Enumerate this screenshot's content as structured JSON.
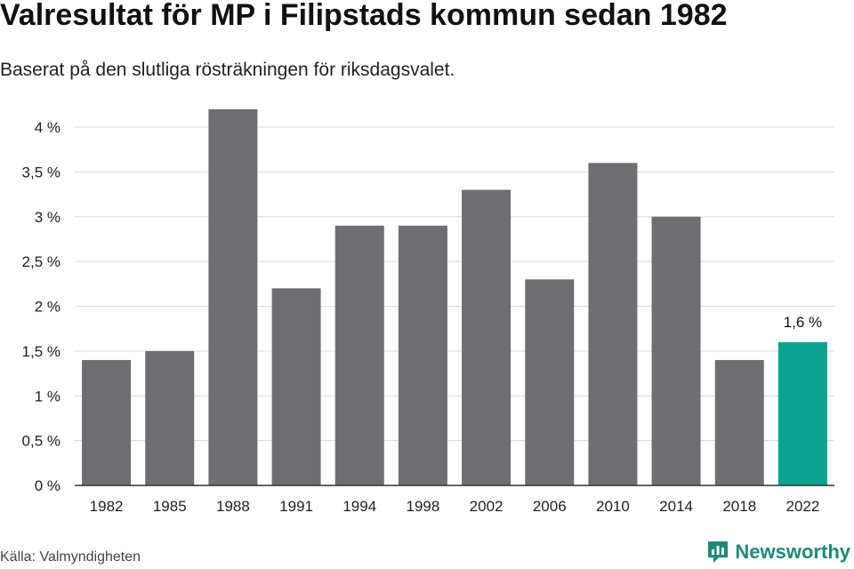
{
  "header": {
    "title": "Valresultat för MP i Filipstads kommun sedan 1982",
    "subtitle": "Baserat på den slutliga rösträkningen för riksdagsvalet."
  },
  "footer": {
    "source": "Källa: Valmyndigheten",
    "brand": "Newsworthy",
    "brand_icon": "newsworthy-logo-icon"
  },
  "colors": {
    "bar": "#6e6d72",
    "highlight": "#0aa38f",
    "grid": "#d9d9d9",
    "axis": "#333333",
    "brand": "#1f8a7a"
  },
  "chart_data": {
    "type": "bar",
    "title": "Valresultat för MP i Filipstads kommun sedan 1982",
    "subtitle": "Baserat på den slutliga rösträkningen för riksdagsvalet.",
    "xlabel": "",
    "ylabel": "",
    "categories": [
      "1982",
      "1985",
      "1988",
      "1991",
      "1994",
      "1998",
      "2002",
      "2006",
      "2010",
      "2014",
      "2018",
      "2022"
    ],
    "values": [
      1.4,
      1.5,
      4.2,
      2.2,
      2.9,
      2.9,
      3.3,
      2.3,
      3.6,
      3.0,
      1.4,
      1.6
    ],
    "ylim": [
      0,
      4
    ],
    "yticks": [
      0,
      0.5,
      1,
      1.5,
      2,
      2.5,
      3,
      3.5,
      4
    ],
    "ytick_labels": [
      "0 %",
      "0,5 %",
      "1 %",
      "1,5 %",
      "2 %",
      "2,5 %",
      "3 %",
      "3,5 %",
      "4 %"
    ],
    "highlight_index": 11,
    "data_labels": [
      {
        "index": 11,
        "text": "1,6 %"
      }
    ],
    "grid": true,
    "legend": "none"
  }
}
